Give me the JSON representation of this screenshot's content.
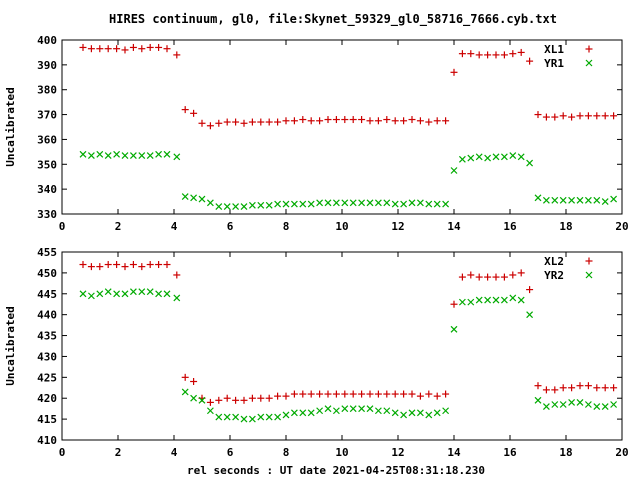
{
  "chart_data": {
    "title": "HIRES continuum, gl0, file:Skynet_59329_gl0_58716_7666.cyb.txt",
    "xlabel": "rel seconds : UT date 2021-04-25T08:31:18.230",
    "panels": [
      {
        "type": "scatter",
        "ylabel": "Uncalibrated",
        "xlim": [
          0,
          20
        ],
        "ylim": [
          330,
          400
        ],
        "xticks": [
          0,
          2,
          4,
          6,
          8,
          10,
          12,
          14,
          16,
          18,
          20
        ],
        "yticks": [
          330,
          340,
          350,
          360,
          370,
          380,
          390,
          400
        ],
        "legend_position": "top-right",
        "series": [
          {
            "name": "XL1",
            "marker": "plus",
            "color": "#cc0000",
            "x": [
              0.75,
              1.05,
              1.35,
              1.65,
              1.95,
              2.25,
              2.55,
              2.85,
              3.15,
              3.45,
              3.75,
              4.1,
              4.4,
              4.7,
              5.0,
              5.3,
              5.6,
              5.9,
              6.2,
              6.5,
              6.8,
              7.1,
              7.4,
              7.7,
              8.0,
              8.3,
              8.6,
              8.9,
              9.2,
              9.5,
              9.8,
              10.1,
              10.4,
              10.7,
              11.0,
              11.3,
              11.6,
              11.9,
              12.2,
              12.5,
              12.8,
              13.1,
              13.4,
              13.7,
              14.0,
              14.3,
              14.6,
              14.9,
              15.2,
              15.5,
              15.8,
              16.1,
              16.4,
              16.7,
              17.0,
              17.3,
              17.6,
              17.9,
              18.2,
              18.5,
              18.8,
              19.1,
              19.4,
              19.7
            ],
            "y": [
              397,
              396.5,
              396.5,
              396.5,
              396.5,
              396,
              397,
              396.5,
              397,
              397,
              396.5,
              394,
              372,
              370.5,
              366.5,
              365.5,
              366.5,
              367,
              367,
              366.5,
              367,
              367,
              367,
              367,
              367.5,
              367.5,
              368,
              367.5,
              367.5,
              368,
              368,
              368,
              368,
              368,
              367.5,
              367.5,
              368,
              367.5,
              367.5,
              368,
              367.5,
              367,
              367.5,
              367.5,
              387,
              394.5,
              394.5,
              394,
              394,
              394,
              394,
              394.5,
              395,
              391.5,
              370,
              369,
              369,
              369.5,
              369,
              369.5,
              369.5,
              369.5,
              369.5,
              369.5
            ]
          },
          {
            "name": "YR1",
            "marker": "cross",
            "color": "#00aa00",
            "x": [
              0.75,
              1.05,
              1.35,
              1.65,
              1.95,
              2.25,
              2.55,
              2.85,
              3.15,
              3.45,
              3.75,
              4.1,
              4.4,
              4.7,
              5.0,
              5.3,
              5.6,
              5.9,
              6.2,
              6.5,
              6.8,
              7.1,
              7.4,
              7.7,
              8.0,
              8.3,
              8.6,
              8.9,
              9.2,
              9.5,
              9.8,
              10.1,
              10.4,
              10.7,
              11.0,
              11.3,
              11.6,
              11.9,
              12.2,
              12.5,
              12.8,
              13.1,
              13.4,
              13.7,
              14.0,
              14.3,
              14.6,
              14.9,
              15.2,
              15.5,
              15.8,
              16.1,
              16.4,
              16.7,
              17.0,
              17.3,
              17.6,
              17.9,
              18.2,
              18.5,
              18.8,
              19.1,
              19.4,
              19.7
            ],
            "y": [
              354,
              353.5,
              354,
              353.5,
              354,
              353.5,
              353.5,
              353.5,
              353.5,
              354,
              354,
              353,
              337,
              336.5,
              336,
              334.5,
              333,
              333,
              333,
              333,
              333.5,
              333.5,
              333.5,
              334,
              334,
              334,
              334,
              334,
              334.5,
              334.5,
              334.5,
              334.5,
              334.5,
              334.5,
              334.5,
              334.5,
              334.5,
              334,
              334,
              334.5,
              334.5,
              334,
              334,
              334,
              347.5,
              352,
              352.5,
              353,
              352.5,
              353,
              353,
              353.5,
              353,
              350.5,
              336.5,
              335.5,
              335.5,
              335.5,
              335.5,
              335.5,
              335.5,
              335.5,
              335,
              336
            ]
          }
        ]
      },
      {
        "type": "scatter",
        "ylabel": "Uncalibrated",
        "xlim": [
          0,
          20
        ],
        "ylim": [
          410,
          455
        ],
        "xticks": [
          0,
          2,
          4,
          6,
          8,
          10,
          12,
          14,
          16,
          18,
          20
        ],
        "yticks": [
          410,
          415,
          420,
          425,
          430,
          435,
          440,
          445,
          450,
          455
        ],
        "legend_position": "top-right",
        "series": [
          {
            "name": "XL2",
            "marker": "plus",
            "color": "#cc0000",
            "x": [
              0.75,
              1.05,
              1.35,
              1.65,
              1.95,
              2.25,
              2.55,
              2.85,
              3.15,
              3.45,
              3.75,
              4.1,
              4.4,
              4.7,
              5.0,
              5.3,
              5.6,
              5.9,
              6.2,
              6.5,
              6.8,
              7.1,
              7.4,
              7.7,
              8.0,
              8.3,
              8.6,
              8.9,
              9.2,
              9.5,
              9.8,
              10.1,
              10.4,
              10.7,
              11.0,
              11.3,
              11.6,
              11.9,
              12.2,
              12.5,
              12.8,
              13.1,
              13.4,
              13.7,
              14.0,
              14.3,
              14.6,
              14.9,
              15.2,
              15.5,
              15.8,
              16.1,
              16.4,
              16.7,
              17.0,
              17.3,
              17.6,
              17.9,
              18.2,
              18.5,
              18.8,
              19.1,
              19.4,
              19.7
            ],
            "y": [
              452,
              451.5,
              451.5,
              452,
              452,
              451.5,
              452,
              451.5,
              452,
              452,
              452,
              449.5,
              425,
              424,
              420,
              419,
              419.5,
              420,
              419.5,
              419.5,
              420,
              420,
              420,
              420.5,
              420.5,
              421,
              421,
              421,
              421,
              421,
              421,
              421,
              421,
              421,
              421,
              421,
              421,
              421,
              421,
              421,
              420.5,
              421,
              420.5,
              421,
              442.5,
              449,
              449.5,
              449,
              449,
              449,
              449,
              449.5,
              450,
              446,
              423,
              422,
              422,
              422.5,
              422.5,
              423,
              423,
              422.5,
              422.5,
              422.5
            ]
          },
          {
            "name": "YR2",
            "marker": "cross",
            "color": "#00aa00",
            "x": [
              0.75,
              1.05,
              1.35,
              1.65,
              1.95,
              2.25,
              2.55,
              2.85,
              3.15,
              3.45,
              3.75,
              4.1,
              4.4,
              4.7,
              5.0,
              5.3,
              5.6,
              5.9,
              6.2,
              6.5,
              6.8,
              7.1,
              7.4,
              7.7,
              8.0,
              8.3,
              8.6,
              8.9,
              9.2,
              9.5,
              9.8,
              10.1,
              10.4,
              10.7,
              11.0,
              11.3,
              11.6,
              11.9,
              12.2,
              12.5,
              12.8,
              13.1,
              13.4,
              13.7,
              14.0,
              14.3,
              14.6,
              14.9,
              15.2,
              15.5,
              15.8,
              16.1,
              16.4,
              16.7,
              17.0,
              17.3,
              17.6,
              17.9,
              18.2,
              18.5,
              18.8,
              19.1,
              19.4,
              19.7
            ],
            "y": [
              445,
              444.5,
              445,
              445.5,
              445,
              445,
              445.5,
              445.5,
              445.5,
              445,
              445,
              444,
              421.5,
              420,
              419.5,
              417,
              415.5,
              415.5,
              415.5,
              415,
              415,
              415.5,
              415.5,
              415.5,
              416,
              416.5,
              416.5,
              416.5,
              417,
              417.5,
              417,
              417.5,
              417.5,
              417.5,
              417.5,
              417,
              417,
              416.5,
              416,
              416.5,
              416.5,
              416,
              416.5,
              417,
              436.5,
              443,
              443,
              443.5,
              443.5,
              443.5,
              443.5,
              444,
              443.5,
              440,
              419.5,
              418,
              418.5,
              418.5,
              419,
              419,
              418.5,
              418,
              418,
              418.5
            ]
          }
        ]
      }
    ]
  }
}
